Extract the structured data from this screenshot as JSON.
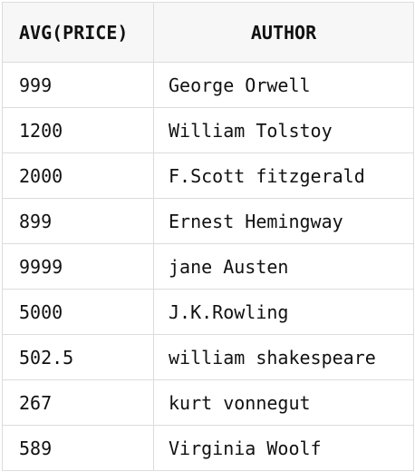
{
  "table": {
    "headers": {
      "price": "AVG(PRICE)",
      "author": "AUTHOR"
    },
    "rows": [
      {
        "avg_price": "999",
        "author": "George Orwell"
      },
      {
        "avg_price": "1200",
        "author": "William Tolstoy"
      },
      {
        "avg_price": "2000",
        "author": "F.Scott fitzgerald"
      },
      {
        "avg_price": "899",
        "author": "Ernest Hemingway"
      },
      {
        "avg_price": "9999",
        "author": "jane Austen"
      },
      {
        "avg_price": "5000",
        "author": "J.K.Rowling"
      },
      {
        "avg_price": "502.5",
        "author": "william shakespeare"
      },
      {
        "avg_price": "267",
        "author": "kurt vonnegut"
      },
      {
        "avg_price": "589",
        "author": "Virginia Woolf"
      }
    ]
  }
}
